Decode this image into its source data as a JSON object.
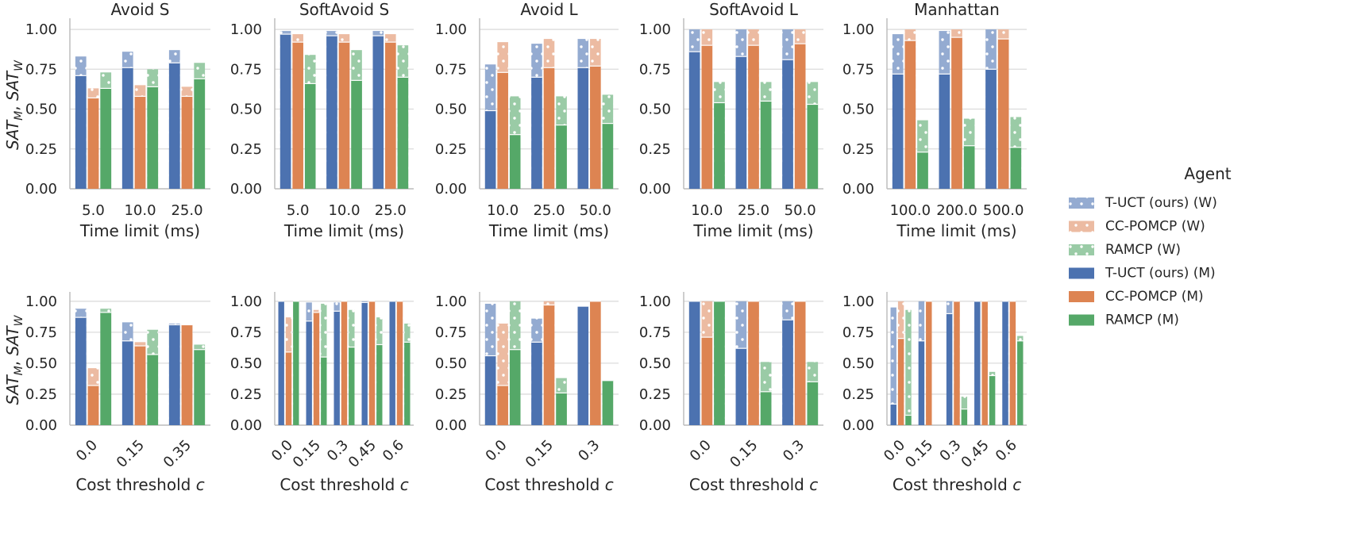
{
  "figure": {
    "legend": {
      "title": "Agent",
      "placement": "right",
      "entries": [
        {
          "label": "T-UCT (ours) (W)",
          "color": "#4C72B0",
          "style": "hatched"
        },
        {
          "label": "CC-POMCP (W)",
          "color": "#DD8452",
          "style": "hatched"
        },
        {
          "label": "RAMCP (W)",
          "color": "#55A868",
          "style": "hatched"
        },
        {
          "label": "T-UCT (ours) (M)",
          "color": "#4C72B0",
          "style": "solid"
        },
        {
          "label": "CC-POMCP (M)",
          "color": "#DD8452",
          "style": "solid"
        },
        {
          "label": "RAMCP (M)",
          "color": "#55A868",
          "style": "solid"
        }
      ]
    }
  },
  "chart_data": [
    {
      "type": "bar",
      "title": "Avoid S",
      "xlabel": "Time limit (ms)",
      "ylabel": "SAT_M, SAT_W",
      "ylim": [
        0,
        1.05
      ],
      "yticks": [
        "0.00",
        "0.25",
        "0.50",
        "0.75",
        "1.00"
      ],
      "categories": [
        "5.0",
        "10.0",
        "25.0"
      ],
      "rotate_ticks": false,
      "series": [
        {
          "name": "T-UCT (ours)",
          "M": [
            0.71,
            0.76,
            0.79
          ],
          "W": [
            0.83,
            0.86,
            0.87
          ]
        },
        {
          "name": "CC-POMCP",
          "M": [
            0.57,
            0.58,
            0.58
          ],
          "W": [
            0.63,
            0.65,
            0.64
          ]
        },
        {
          "name": "RAMCP",
          "M": [
            0.63,
            0.64,
            0.69
          ],
          "W": [
            0.73,
            0.75,
            0.79
          ]
        }
      ]
    },
    {
      "type": "bar",
      "title": "SoftAvoid S",
      "xlabel": "Time limit (ms)",
      "ylabel": "",
      "ylim": [
        0,
        1.05
      ],
      "yticks": [
        "0.00",
        "0.25",
        "0.50",
        "0.75",
        "1.00"
      ],
      "categories": [
        "5.0",
        "10.0",
        "25.0"
      ],
      "rotate_ticks": false,
      "series": [
        {
          "name": "T-UCT (ours)",
          "M": [
            0.97,
            0.96,
            0.96
          ],
          "W": [
            0.99,
            0.99,
            0.99
          ]
        },
        {
          "name": "CC-POMCP",
          "M": [
            0.92,
            0.92,
            0.92
          ],
          "W": [
            0.97,
            0.97,
            0.97
          ]
        },
        {
          "name": "RAMCP",
          "M": [
            0.66,
            0.68,
            0.7
          ],
          "W": [
            0.84,
            0.87,
            0.9
          ]
        }
      ]
    },
    {
      "type": "bar",
      "title": "Avoid L",
      "xlabel": "Time limit (ms)",
      "ylabel": "",
      "ylim": [
        0,
        1.05
      ],
      "yticks": [
        "0.00",
        "0.25",
        "0.50",
        "0.75",
        "1.00"
      ],
      "categories": [
        "10.0",
        "25.0",
        "50.0"
      ],
      "rotate_ticks": false,
      "series": [
        {
          "name": "T-UCT (ours)",
          "M": [
            0.49,
            0.7,
            0.76
          ],
          "W": [
            0.78,
            0.91,
            0.94
          ]
        },
        {
          "name": "CC-POMCP",
          "M": [
            0.73,
            0.76,
            0.77
          ],
          "W": [
            0.92,
            0.94,
            0.94
          ]
        },
        {
          "name": "RAMCP",
          "M": [
            0.34,
            0.4,
            0.41
          ],
          "W": [
            0.58,
            0.58,
            0.59
          ]
        }
      ]
    },
    {
      "type": "bar",
      "title": "SoftAvoid L",
      "xlabel": "Time limit (ms)",
      "ylabel": "",
      "ylim": [
        0,
        1.05
      ],
      "yticks": [
        "0.00",
        "0.25",
        "0.50",
        "0.75",
        "1.00"
      ],
      "categories": [
        "10.0",
        "25.0",
        "50.0"
      ],
      "rotate_ticks": false,
      "series": [
        {
          "name": "T-UCT (ours)",
          "M": [
            0.86,
            0.83,
            0.81
          ],
          "W": [
            1.0,
            1.0,
            1.0
          ]
        },
        {
          "name": "CC-POMCP",
          "M": [
            0.9,
            0.9,
            0.91
          ],
          "W": [
            1.0,
            1.0,
            1.0
          ]
        },
        {
          "name": "RAMCP",
          "M": [
            0.54,
            0.55,
            0.53
          ],
          "W": [
            0.67,
            0.67,
            0.67
          ]
        }
      ]
    },
    {
      "type": "bar",
      "title": "Manhattan",
      "xlabel": "Time limit (ms)",
      "ylabel": "",
      "ylim": [
        0,
        1.05
      ],
      "yticks": [
        "0.00",
        "0.25",
        "0.50",
        "0.75",
        "1.00"
      ],
      "categories": [
        "100.0",
        "200.0",
        "500.0"
      ],
      "rotate_ticks": false,
      "series": [
        {
          "name": "T-UCT (ours)",
          "M": [
            0.72,
            0.72,
            0.75
          ],
          "W": [
            0.97,
            0.99,
            1.0
          ]
        },
        {
          "name": "CC-POMCP",
          "M": [
            0.93,
            0.95,
            0.94
          ],
          "W": [
            1.0,
            1.0,
            1.0
          ]
        },
        {
          "name": "RAMCP",
          "M": [
            0.23,
            0.27,
            0.26
          ],
          "W": [
            0.43,
            0.44,
            0.45
          ]
        }
      ]
    },
    {
      "type": "bar",
      "title": "",
      "xlabel": "Cost threshold c",
      "ylabel": "SAT_M, SAT_W",
      "ylim": [
        0,
        1.05
      ],
      "yticks": [
        "0.00",
        "0.25",
        "0.50",
        "0.75",
        "1.00"
      ],
      "categories": [
        "0.0",
        "0.15",
        "0.35"
      ],
      "rotate_ticks": true,
      "series": [
        {
          "name": "T-UCT (ours)",
          "M": [
            0.87,
            0.68,
            0.81
          ],
          "W": [
            0.94,
            0.83,
            0.82
          ]
        },
        {
          "name": "CC-POMCP",
          "M": [
            0.32,
            0.64,
            0.81
          ],
          "W": [
            0.46,
            0.67,
            0.81
          ]
        },
        {
          "name": "RAMCP",
          "M": [
            0.91,
            0.57,
            0.61
          ],
          "W": [
            0.94,
            0.77,
            0.65
          ]
        }
      ]
    },
    {
      "type": "bar",
      "title": "",
      "xlabel": "Cost threshold c",
      "ylabel": "",
      "ylim": [
        0,
        1.05
      ],
      "yticks": [
        "0.00",
        "0.25",
        "0.50",
        "0.75",
        "1.00"
      ],
      "categories": [
        "0.0",
        "0.15",
        "0.3",
        "0.45",
        "0.6"
      ],
      "rotate_ticks": true,
      "series": [
        {
          "name": "T-UCT (ours)",
          "M": [
            1.0,
            0.84,
            0.92,
            0.99,
            1.0
          ],
          "W": [
            1.0,
            0.99,
            0.99,
            1.0,
            1.0
          ]
        },
        {
          "name": "CC-POMCP",
          "M": [
            0.59,
            0.91,
            1.0,
            1.0,
            1.0
          ],
          "W": [
            0.87,
            0.93,
            1.0,
            1.0,
            1.0
          ]
        },
        {
          "name": "RAMCP",
          "M": [
            1.0,
            0.55,
            0.63,
            0.65,
            0.67
          ],
          "W": [
            1.0,
            0.98,
            0.93,
            0.87,
            0.82
          ]
        }
      ]
    },
    {
      "type": "bar",
      "title": "",
      "xlabel": "Cost threshold c",
      "ylabel": "",
      "ylim": [
        0,
        1.05
      ],
      "yticks": [
        "0.00",
        "0.25",
        "0.50",
        "0.75",
        "1.00"
      ],
      "categories": [
        "0.0",
        "0.15",
        "0.3"
      ],
      "rotate_ticks": true,
      "series": [
        {
          "name": "T-UCT (ours)",
          "M": [
            0.56,
            0.67,
            0.96
          ],
          "W": [
            0.98,
            0.86,
            0.96
          ]
        },
        {
          "name": "CC-POMCP",
          "M": [
            0.32,
            0.97,
            1.0
          ],
          "W": [
            0.82,
            1.0,
            1.0
          ]
        },
        {
          "name": "RAMCP",
          "M": [
            0.61,
            0.26,
            0.36
          ],
          "W": [
            1.0,
            0.38,
            0.36
          ]
        }
      ]
    },
    {
      "type": "bar",
      "title": "",
      "xlabel": "Cost threshold c",
      "ylabel": "",
      "ylim": [
        0,
        1.05
      ],
      "yticks": [
        "0.00",
        "0.25",
        "0.50",
        "0.75",
        "1.00"
      ],
      "categories": [
        "0.0",
        "0.15",
        "0.3"
      ],
      "rotate_ticks": true,
      "series": [
        {
          "name": "T-UCT (ours)",
          "M": [
            1.0,
            0.62,
            0.85
          ],
          "W": [
            1.0,
            1.0,
            1.0
          ]
        },
        {
          "name": "CC-POMCP",
          "M": [
            0.71,
            1.0,
            1.0
          ],
          "W": [
            1.0,
            1.0,
            1.0
          ]
        },
        {
          "name": "RAMCP",
          "M": [
            1.0,
            0.27,
            0.35
          ],
          "W": [
            1.0,
            0.51,
            0.51
          ]
        }
      ]
    },
    {
      "type": "bar",
      "title": "",
      "xlabel": "Cost threshold c",
      "ylabel": "",
      "ylim": [
        0,
        1.05
      ],
      "yticks": [
        "0.00",
        "0.25",
        "0.50",
        "0.75",
        "1.00"
      ],
      "categories": [
        "0.0",
        "0.15",
        "0.3",
        "0.45",
        "0.6"
      ],
      "rotate_ticks": true,
      "series": [
        {
          "name": "T-UCT (ours)",
          "M": [
            0.17,
            0.68,
            0.9,
            1.0,
            1.0
          ],
          "W": [
            0.95,
            1.0,
            1.0,
            1.0,
            1.0
          ]
        },
        {
          "name": "CC-POMCP",
          "M": [
            0.7,
            1.0,
            1.0,
            1.0,
            1.0
          ],
          "W": [
            1.0,
            1.0,
            1.0,
            1.0,
            1.0
          ]
        },
        {
          "name": "RAMCP",
          "M": [
            0.08,
            0.0,
            0.13,
            0.4,
            0.68
          ],
          "W": [
            0.93,
            0.0,
            0.23,
            0.43,
            0.72
          ]
        }
      ]
    }
  ]
}
